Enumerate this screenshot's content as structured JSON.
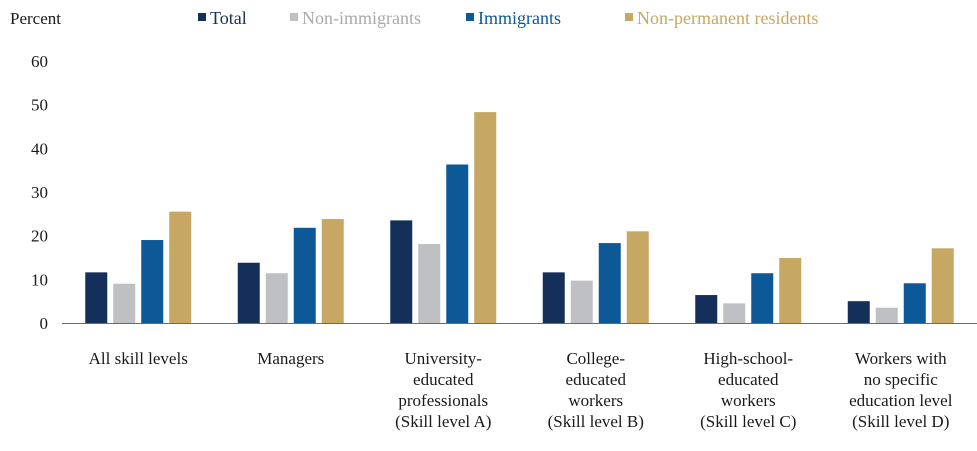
{
  "chart_data": {
    "type": "bar",
    "title": "",
    "ylabel": "Percent",
    "xlabel": "",
    "ylim": [
      0,
      60
    ],
    "yticks": [
      0,
      10,
      20,
      30,
      40,
      50,
      60
    ],
    "grid": false,
    "legend": "top",
    "categories": [
      [
        "All skill levels"
      ],
      [
        "Managers"
      ],
      [
        "University-",
        "educated",
        "professionals",
        "(Skill level A)"
      ],
      [
        "College-",
        "educated",
        "workers",
        "(Skill level B)"
      ],
      [
        "High-school-",
        "educated",
        "workers",
        "(Skill level C)"
      ],
      [
        "Workers with",
        "no specific",
        "education level",
        "(Skill level D)"
      ]
    ],
    "series": [
      {
        "name": "Total",
        "color": "#14305a",
        "values": [
          11.6,
          13.8,
          23.5,
          11.6,
          6.4,
          5.0
        ]
      },
      {
        "name": "Non-immigrants",
        "color": "#bfc0c3",
        "values": [
          9.0,
          11.4,
          18.1,
          9.7,
          4.5,
          3.5
        ]
      },
      {
        "name": "Immigrants",
        "color": "#0d5896",
        "values": [
          19.0,
          21.8,
          36.3,
          18.3,
          11.4,
          9.1
        ]
      },
      {
        "name": "Non-permanent residents",
        "color": "#c6a763",
        "values": [
          25.5,
          23.8,
          48.3,
          21.0,
          14.9,
          17.1
        ]
      }
    ]
  }
}
